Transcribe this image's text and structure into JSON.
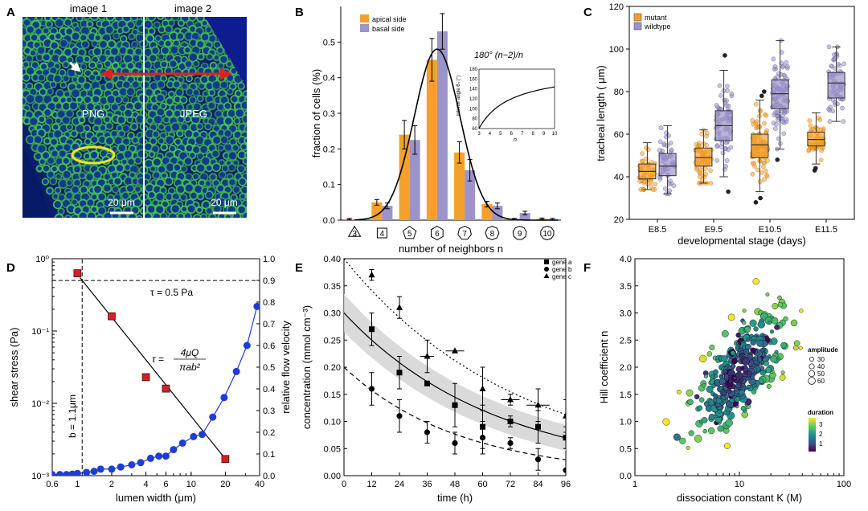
{
  "colors": {
    "orange": "#f5a02a",
    "purple": "#9b93c9",
    "orange_dark": "#b86a10",
    "purple_dark": "#54508a",
    "red_marker": "#d42020",
    "blue_marker": "#1f3cd6",
    "micro_bg": "#0a1f6e",
    "micro_green": "#3fc23c",
    "arrow_red": "#e02020",
    "ellipse_yellow": "#f2e41c",
    "band_grey": "#d4d4d4"
  },
  "panels": {
    "A": {
      "letter": "A",
      "left_label": "image 1",
      "right_label": "image 2",
      "left_center": "PNG",
      "right_center": "JPEG",
      "scalebar_left": "20 μm",
      "scalebar_right": "20 μm"
    },
    "B": {
      "letter": "B",
      "legend": [
        "apical side",
        "basal side"
      ],
      "inset_formula": "180° (n−2)/n",
      "inset_ylabel": "interior angle θₙ (°)",
      "inset_xlabel": "n"
    },
    "C": {
      "letter": "C",
      "legend": [
        "mutant",
        "wildtype"
      ]
    },
    "D": {
      "letter": "D",
      "annotation_tau": "τ = 0.5 Pa",
      "annotation_b": "b = 1.1μm",
      "formula_lhs": "τ =",
      "formula_num": "4μQ",
      "formula_den": "πab²"
    },
    "E": {
      "letter": "E",
      "legend": [
        "gene a",
        "gene b",
        "gene c"
      ]
    },
    "F": {
      "letter": "F",
      "size_legend_title": "amplitude",
      "size_legend_values": [
        "30",
        "40",
        "50",
        "60"
      ],
      "color_legend_title": "duration",
      "color_legend_ticks": [
        "3",
        "2",
        "1"
      ]
    }
  },
  "chart_data": [
    {
      "panel": "B",
      "type": "bar",
      "xlabel": "number of neighbors n",
      "ylabel": "fraction of cells (%)",
      "categories": [
        3,
        4,
        5,
        6,
        7,
        8,
        9,
        10
      ],
      "category_shapes": [
        "3",
        "4",
        "5",
        "6",
        "7",
        "8",
        "9",
        "10"
      ],
      "ylim": [
        0,
        0.6
      ],
      "yticks": [
        "0.0",
        "0.1",
        "0.2",
        "0.3",
        "0.4",
        "0.5"
      ],
      "series": [
        {
          "name": "apical side",
          "values": [
            0.003,
            0.05,
            0.24,
            0.45,
            0.19,
            0.045,
            0.003,
            0.004
          ],
          "errors": [
            0.002,
            0.008,
            0.04,
            0.06,
            0.03,
            0.008,
            0.002,
            0.002
          ]
        },
        {
          "name": "basal side",
          "values": [
            0.0,
            0.04,
            0.225,
            0.53,
            0.14,
            0.04,
            0.02,
            0.003
          ],
          "errors": [
            0.0,
            0.008,
            0.04,
            0.05,
            0.03,
            0.008,
            0.005,
            0.002
          ]
        }
      ],
      "fit": "gaussian",
      "fit_params": {
        "mean": 6.0,
        "sd": 0.83,
        "peak": 0.48
      },
      "inset": {
        "type": "line",
        "xlim": [
          3,
          10
        ],
        "ylim": [
          60,
          180
        ],
        "xticks": [
          "3",
          "4",
          "5",
          "6",
          "7",
          "8",
          "9",
          "10"
        ],
        "yticks": [
          "60",
          "80",
          "100",
          "120",
          "140",
          "160",
          "180"
        ],
        "function": "180*(n-2)/n"
      }
    },
    {
      "panel": "C",
      "type": "box",
      "xlabel": "developmental stage (days)",
      "ylabel": "tracheal length ( μm)",
      "categories": [
        "E8.5",
        "E9.5",
        "E10.5",
        "E11.5"
      ],
      "ylim": [
        20,
        120
      ],
      "yticks": [
        "20",
        "40",
        "60",
        "80",
        "100",
        "120"
      ],
      "series": [
        {
          "name": "mutant",
          "boxes": [
            {
              "q1": 39,
              "median": 42.5,
              "q3": 46,
              "lo": 34,
              "hi": 56,
              "n": 50,
              "outliers": []
            },
            {
              "q1": 45,
              "median": 49,
              "q3": 53.5,
              "lo": 37,
              "hi": 62,
              "n": 60,
              "outliers": []
            },
            {
              "q1": 49,
              "median": 55,
              "q3": 60,
              "lo": 33,
              "hi": 76,
              "n": 90,
              "outliers": [
                30,
                28,
                80,
                78
              ]
            },
            {
              "q1": 54.5,
              "median": 57.5,
              "q3": 61,
              "lo": 46,
              "hi": 70,
              "n": 50,
              "outliers": [
                44,
                43
              ]
            }
          ]
        },
        {
          "name": "wildtype",
          "boxes": [
            {
              "q1": 40.5,
              "median": 45,
              "q3": 51,
              "lo": 32,
              "hi": 64,
              "n": 50,
              "outliers": []
            },
            {
              "q1": 57,
              "median": 64,
              "q3": 71,
              "lo": 40,
              "hi": 90,
              "n": 70,
              "outliers": [
                97,
                33
              ]
            },
            {
              "q1": 72,
              "median": 79,
              "q3": 85.5,
              "lo": 53,
              "hi": 104,
              "n": 90,
              "outliers": [
                48
              ]
            },
            {
              "q1": 77,
              "median": 84,
              "q3": 89,
              "lo": 66,
              "hi": 101,
              "n": 60,
              "outliers": []
            }
          ]
        }
      ]
    },
    {
      "panel": "D",
      "type": "line",
      "xlabel": "lumen width (μm)",
      "ylabel": "shear stress (Pa)",
      "y2label": "relative flow velocity",
      "xscale": "log",
      "xlim": [
        0.6,
        40
      ],
      "xticks": [
        "0.6",
        "1",
        "2",
        "4",
        "6",
        "10",
        "20",
        "40"
      ],
      "yscale": "log",
      "ylim": [
        0.001,
        1
      ],
      "yticks": [
        "10⁻³",
        "10⁻²",
        "10⁻¹",
        "10⁰"
      ],
      "y2lim": [
        0,
        1.0
      ],
      "y2ticks": [
        "0.0",
        "0.1",
        "0.2",
        "0.3",
        "0.4",
        "0.5",
        "0.6",
        "0.7",
        "0.8",
        "0.9",
        "1.0"
      ],
      "hline": 0.5,
      "vline": 1.1,
      "series": [
        {
          "name": "shear stress",
          "axis": "left",
          "marker": "square",
          "x": [
            1,
            2,
            4,
            6,
            20
          ],
          "y": [
            0.63,
            0.16,
            0.023,
            0.016,
            0.0017
          ],
          "fit_line": {
            "x": [
              1.05,
              20
            ],
            "y": [
              0.55,
              0.0017
            ]
          }
        },
        {
          "name": "relative flow velocity",
          "axis": "right",
          "marker": "circle",
          "x": [
            0.6,
            0.7,
            0.8,
            0.9,
            1.0,
            1.2,
            1.4,
            1.6,
            2.0,
            2.4,
            3.0,
            3.6,
            4.4,
            5.2,
            6.0,
            7.0,
            8.4,
            10.5,
            12.5,
            15.5,
            19.5,
            25.0,
            31.0,
            38.0
          ],
          "y": [
            0.005,
            0.005,
            0.005,
            0.007,
            0.01,
            0.015,
            0.02,
            0.03,
            0.03,
            0.04,
            0.05,
            0.06,
            0.08,
            0.09,
            0.09,
            0.12,
            0.15,
            0.18,
            0.19,
            0.27,
            0.36,
            0.48,
            0.6,
            0.78
          ]
        }
      ]
    },
    {
      "panel": "E",
      "type": "scatter",
      "xlabel": "time (h)",
      "ylabel": "concentration (mmol cm⁻³)",
      "xlim": [
        0,
        96
      ],
      "xticks": [
        "0",
        "12",
        "24",
        "36",
        "48",
        "60",
        "72",
        "84",
        "96"
      ],
      "ylim": [
        0,
        0.4
      ],
      "yticks": [
        "0.00",
        "0.05",
        "0.10",
        "0.15",
        "0.20",
        "0.25",
        "0.30",
        "0.35",
        "0.40"
      ],
      "series": [
        {
          "name": "gene a",
          "marker": "square",
          "x": [
            12,
            24,
            36,
            48,
            60,
            72,
            84,
            96
          ],
          "y": [
            0.27,
            0.19,
            0.17,
            0.13,
            0.09,
            0.1,
            0.09,
            0.07
          ],
          "yerr": [
            0.03,
            0.03,
            0.0,
            0.04,
            0.04,
            0.01,
            0.03,
            0.02
          ],
          "xerr": [
            0,
            0,
            0,
            0,
            0,
            0,
            0,
            0
          ],
          "fit": {
            "a": 0.3,
            "k": 0.0152
          },
          "band": 0.035
        },
        {
          "name": "gene b",
          "marker": "circle",
          "x": [
            12,
            24,
            36,
            48,
            60,
            72,
            84,
            96
          ],
          "y": [
            0.16,
            0.11,
            0.08,
            0.06,
            0.07,
            0.06,
            0.03,
            0.01
          ],
          "yerr": [
            0.03,
            0.03,
            0.02,
            0.02,
            0.03,
            0.01,
            0.02,
            0.0
          ],
          "xerr": [
            0,
            0,
            0,
            0,
            0,
            0,
            0,
            0
          ],
          "fit": {
            "a": 0.2,
            "k": 0.02
          }
        },
        {
          "name": "gene c",
          "marker": "triangle",
          "x": [
            12,
            24,
            36,
            48,
            60,
            72,
            84,
            96
          ],
          "y": [
            0.37,
            0.31,
            0.22,
            0.23,
            0.16,
            0.14,
            0.13,
            0.11
          ],
          "yerr": [
            0.01,
            0.02,
            0.03,
            0.0,
            0.04,
            0.01,
            0.03,
            0.03
          ],
          "xerr": [
            0,
            0,
            3,
            4,
            0,
            4,
            5,
            0
          ],
          "fit": {
            "a": 0.4,
            "k": 0.0132
          }
        }
      ]
    },
    {
      "panel": "F",
      "type": "scatter",
      "xlabel": "dissociation constant K (M)",
      "ylabel": "Hill coefficient n",
      "xscale": "log",
      "xlim": [
        1,
        100
      ],
      "xticks": [
        "1",
        "10",
        "100"
      ],
      "ylim": [
        0,
        4
      ],
      "yticks": [
        "0.0",
        "0.5",
        "1.0",
        "1.5",
        "2.0",
        "2.5",
        "3.0",
        "3.5",
        "4.0"
      ],
      "n_points": 340,
      "cluster": {
        "center_logK": 1.0,
        "center_n": 1.9,
        "sd_logK": 0.22,
        "sd_n": 0.55,
        "corr": 0.7
      },
      "size_by": "amplitude",
      "size_range": [
        25,
        65
      ],
      "color_by": "duration",
      "color_range": [
        0.5,
        3.5
      ],
      "colormap": [
        "#440154",
        "#3b528b",
        "#21918c",
        "#5ec962",
        "#fde725"
      ]
    }
  ]
}
